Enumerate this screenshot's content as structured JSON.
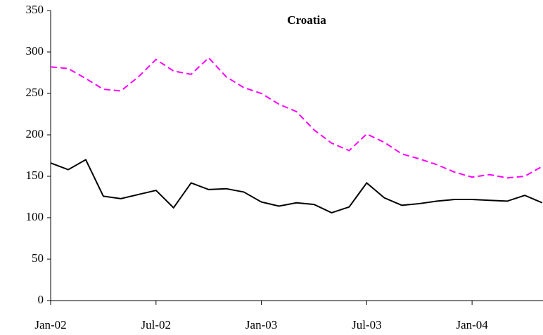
{
  "chart_data": {
    "type": "line",
    "title": "Croatia",
    "categories": [
      "Jan-02",
      null,
      null,
      null,
      null,
      null,
      "Jul-02",
      null,
      null,
      null,
      null,
      null,
      "Jan-03",
      null,
      null,
      null,
      null,
      null,
      "Jul-03",
      null,
      null,
      null,
      null,
      null,
      "Jan-04",
      null,
      null,
      null,
      null
    ],
    "series": [
      {
        "color": "#000000",
        "dashed": false,
        "values": [
          166,
          158,
          170,
          126,
          123,
          128,
          133,
          112,
          142,
          134,
          135,
          131,
          119,
          114,
          118,
          116,
          106,
          113,
          142,
          124,
          115,
          117,
          120,
          122,
          122,
          121,
          120,
          127,
          118
        ]
      },
      {
        "color": "#ff00ff",
        "dashed": true,
        "values": [
          282,
          280,
          268,
          255,
          253,
          270,
          291,
          277,
          273,
          293,
          270,
          257,
          250,
          237,
          228,
          206,
          190,
          181,
          201,
          191,
          177,
          171,
          164,
          155,
          149,
          152,
          148,
          150,
          162
        ]
      }
    ],
    "ylim": [
      0,
      350
    ],
    "yticks": [
      0,
      50,
      100,
      150,
      200,
      250,
      300,
      350
    ],
    "grid": false
  }
}
